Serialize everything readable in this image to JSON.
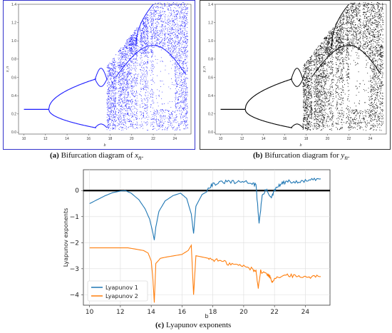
{
  "captions": {
    "a": {
      "label": "(a)",
      "text": " Bifurcation diagram of ",
      "var": "x",
      "sub": "n",
      "end": "."
    },
    "b": {
      "label": "(b)",
      "text": " Bifurcation diagram for ",
      "var": "y",
      "sub": "n",
      "end": "."
    },
    "c": {
      "label": "(c)",
      "text": " Lyapunov exponents"
    }
  },
  "chart_data": [
    {
      "id": "a",
      "type": "scatter",
      "title": "",
      "xlabel": "b",
      "ylabel": "x_n",
      "xlim": [
        9.5,
        25.5
      ],
      "ylim": [
        -0.02,
        1.4
      ],
      "xticks": [
        10,
        12,
        14,
        16,
        18,
        20,
        22,
        24
      ],
      "yticks": [
        0.0,
        0.2,
        0.4,
        0.6,
        0.8,
        1.0,
        1.2,
        1.4
      ],
      "color": "#1a1aff",
      "stable_branch": {
        "b": [
          10.0,
          12.3
        ],
        "x": 0.25
      },
      "bifurcations_b": [
        12.3,
        16.6,
        17.3,
        17.6
      ],
      "chaos_onset_b": 17.7,
      "windows_b": [
        18.6,
        20.6,
        21.6,
        23.2
      ]
    },
    {
      "id": "b",
      "type": "scatter",
      "title": "",
      "xlabel": "b",
      "ylabel": "y_n",
      "xlim": [
        9.5,
        25.5
      ],
      "ylim": [
        -0.02,
        1.4
      ],
      "xticks": [
        10,
        12,
        14,
        16,
        18,
        20,
        22,
        24
      ],
      "yticks": [
        0.0,
        0.2,
        0.4,
        0.6,
        0.8,
        1.0,
        1.2,
        1.4
      ],
      "color": "#000000"
    },
    {
      "id": "c",
      "type": "line",
      "title": "",
      "xlabel": "b",
      "ylabel": "Lyapunov exponents",
      "xlim": [
        9.6,
        25.6
      ],
      "ylim": [
        -4.4,
        0.8
      ],
      "xticks": [
        10,
        12,
        14,
        16,
        18,
        20,
        22,
        24
      ],
      "yticks": [
        0,
        -1,
        -2,
        -3,
        -4
      ],
      "grid": true,
      "legend": "bottom-left",
      "series": [
        {
          "name": "Lyapunov 1",
          "color": "#1f77b4",
          "x": [
            10.0,
            10.5,
            11.0,
            11.5,
            12.0,
            12.3,
            12.7,
            13.2,
            13.6,
            13.9,
            14.1,
            14.2,
            14.3,
            14.5,
            14.9,
            15.4,
            15.9,
            16.3,
            16.6,
            16.75,
            16.9,
            17.3,
            17.6,
            17.7,
            18.0,
            18.5,
            19.0,
            19.5,
            20.0,
            20.5,
            20.8,
            21.0,
            21.2,
            21.5,
            21.8,
            22.0,
            22.3,
            22.6,
            23.0,
            23.5,
            24.0,
            24.5,
            25.0
          ],
          "y": [
            -0.5,
            -0.35,
            -0.2,
            -0.08,
            -0.02,
            0.0,
            -0.1,
            -0.35,
            -0.7,
            -1.1,
            -1.6,
            -1.9,
            -1.4,
            -0.8,
            -0.4,
            -0.2,
            -0.1,
            -0.3,
            -0.9,
            -1.65,
            -0.6,
            -0.15,
            -0.05,
            0.1,
            0.25,
            0.3,
            0.35,
            0.3,
            0.35,
            0.3,
            0.2,
            -1.25,
            -0.2,
            0.05,
            -0.3,
            0.0,
            0.2,
            0.3,
            0.35,
            0.3,
            0.38,
            0.4,
            0.45
          ]
        },
        {
          "name": "Lyapunov 2",
          "color": "#ff7f0e",
          "x": [
            10.0,
            11.0,
            12.0,
            12.5,
            13.0,
            13.5,
            13.8,
            14.0,
            14.1,
            14.2,
            14.3,
            14.6,
            15.0,
            15.5,
            16.0,
            16.4,
            16.6,
            16.75,
            16.9,
            17.3,
            17.7,
            18.0,
            18.5,
            19.0,
            19.5,
            20.0,
            20.5,
            20.8,
            20.95,
            21.1,
            21.5,
            21.7,
            21.85,
            22.0,
            22.5,
            23.0,
            23.5,
            24.0,
            24.5,
            25.0
          ],
          "y": [
            -2.2,
            -2.2,
            -2.2,
            -2.2,
            -2.25,
            -2.3,
            -2.4,
            -2.7,
            -3.3,
            -4.3,
            -2.8,
            -2.6,
            -2.55,
            -2.5,
            -2.45,
            -2.3,
            -2.1,
            -4.0,
            -2.5,
            -2.55,
            -2.6,
            -2.65,
            -2.7,
            -2.8,
            -2.85,
            -2.9,
            -3.0,
            -3.1,
            -3.7,
            -3.1,
            -3.2,
            -3.3,
            -3.5,
            -3.35,
            -3.3,
            -3.25,
            -3.3,
            -3.3,
            -3.3,
            -3.3
          ]
        }
      ]
    }
  ]
}
